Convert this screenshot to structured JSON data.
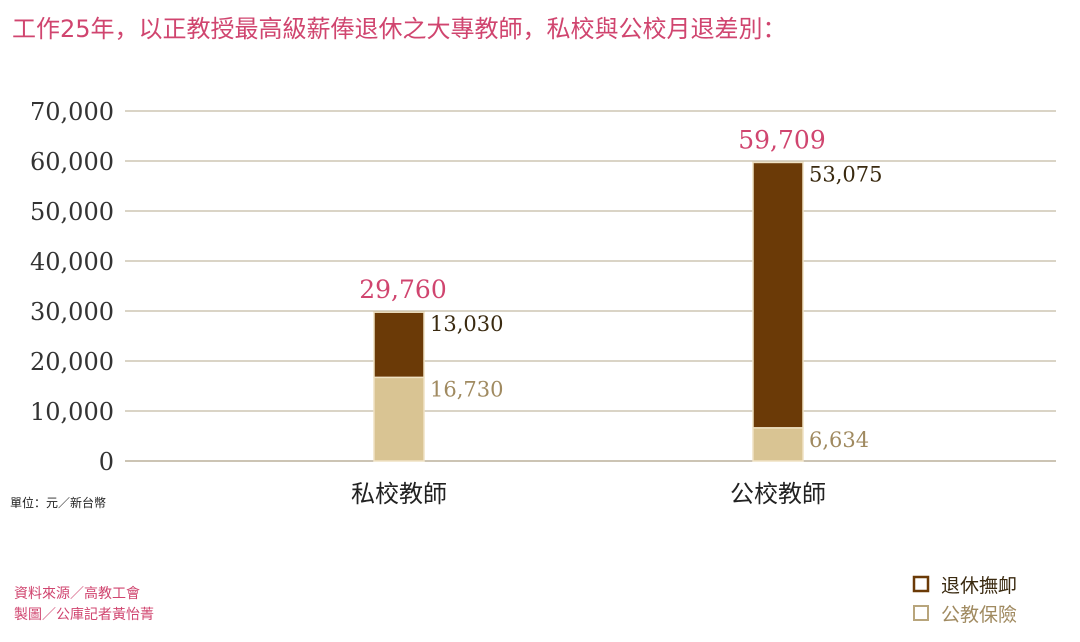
{
  "chart_data": {
    "type": "bar",
    "stacked": true,
    "title": "工作25年，以正教授最高級薪俸退休之大專教師，私校與公校月退差別：",
    "categories": [
      "私校教師",
      "公校教師"
    ],
    "series": [
      {
        "name": "公教保險",
        "values": [
          16730,
          6634
        ],
        "labels": [
          "16,730",
          "6,634"
        ],
        "color": "#d9c493"
      },
      {
        "name": "退休撫卹",
        "values": [
          13030,
          53075
        ],
        "labels": [
          "13,030",
          "53,075"
        ],
        "color": "#6b3a07"
      }
    ],
    "totals": [
      29760,
      59709
    ],
    "total_labels": [
      "29,760",
      "59,709"
    ],
    "ylim": [
      0,
      70000
    ],
    "yticks": [
      0,
      10000,
      20000,
      30000,
      40000,
      50000,
      60000,
      70000
    ],
    "ytick_labels": [
      "0",
      "10,000",
      "20,000",
      "30,000",
      "40,000",
      "50,000",
      "60,000",
      "70,000"
    ],
    "grid": true,
    "legend_position": "bottom-right",
    "unit": "單位：元／新台幣",
    "source_lines": [
      "資料來源／高教工會",
      "製圖／公庫記者黃怡菁"
    ]
  }
}
